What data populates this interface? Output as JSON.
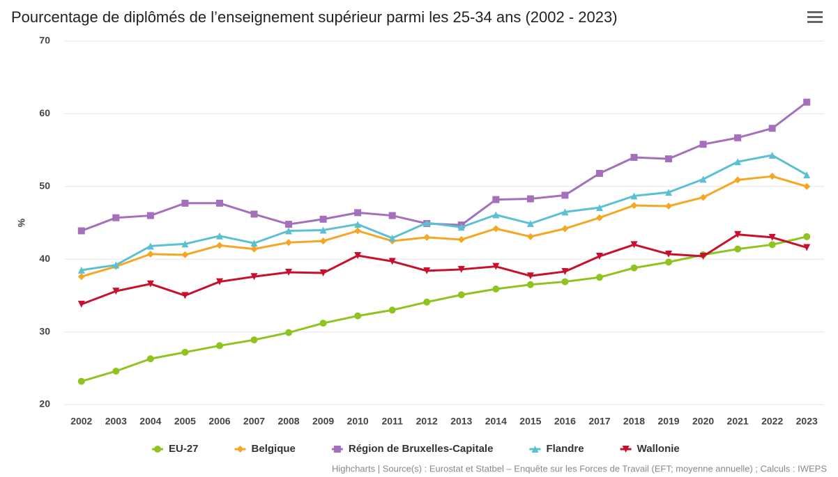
{
  "chart_data": {
    "type": "line",
    "title": "Pourcentage de diplômés de l’enseignement supérieur parmi les 25-34 ans (2002 - 2023)",
    "y_label": "%",
    "credits": "Highcharts | Source(s) : Eurostat et Statbel – Enquête sur les Forces de Travail (EFT; moyenne annuelle) ; Calculs : IWEPS",
    "categories": [
      "2002",
      "2003",
      "2004",
      "2005",
      "2006",
      "2007",
      "2008",
      "2009",
      "2010",
      "2011",
      "2012",
      "2013",
      "2014",
      "2015",
      "2016",
      "2017",
      "2018",
      "2019",
      "2020",
      "2021",
      "2022",
      "2023"
    ],
    "ylim": [
      20,
      70
    ],
    "yticks": [
      20,
      30,
      40,
      50,
      60,
      70
    ],
    "grid": true,
    "legend": "bottom",
    "series": [
      {
        "name": "EU-27",
        "color": "#8fc31f",
        "marker": "circle",
        "values": [
          23.2,
          24.6,
          26.3,
          27.2,
          28.1,
          28.9,
          29.9,
          31.2,
          32.2,
          33.0,
          34.1,
          35.1,
          35.9,
          36.5,
          36.9,
          37.5,
          38.8,
          39.6,
          40.6,
          41.4,
          42.0,
          43.1
        ]
      },
      {
        "name": "Belgique",
        "color": "#f5a623",
        "marker": "diamond",
        "values": [
          37.6,
          39.0,
          40.7,
          40.6,
          41.9,
          41.4,
          42.3,
          42.5,
          43.9,
          42.5,
          43.0,
          42.7,
          44.2,
          43.1,
          44.2,
          45.7,
          47.4,
          47.3,
          48.5,
          50.9,
          51.4,
          50.0
        ]
      },
      {
        "name": "Région de Bruxelles-Capitale",
        "color": "#a470bc",
        "marker": "square",
        "values": [
          43.9,
          45.7,
          46.0,
          47.7,
          47.7,
          46.2,
          44.8,
          45.5,
          46.4,
          46.0,
          44.9,
          44.7,
          48.2,
          48.3,
          48.8,
          51.8,
          54.0,
          53.8,
          55.8,
          56.7,
          58.0,
          61.6
        ]
      },
      {
        "name": "Flandre",
        "color": "#5bc0d3",
        "marker": "triangle",
        "values": [
          38.5,
          39.2,
          41.8,
          42.1,
          43.2,
          42.2,
          43.9,
          44.0,
          44.8,
          42.9,
          45.0,
          44.4,
          46.1,
          44.9,
          46.5,
          47.1,
          48.7,
          49.2,
          51.0,
          53.4,
          54.3,
          51.6
        ]
      },
      {
        "name": "Wallonie",
        "color": "#c8102e",
        "marker": "triangle-down",
        "values": [
          33.8,
          35.6,
          36.6,
          35.0,
          36.9,
          37.6,
          38.2,
          38.1,
          40.5,
          39.7,
          38.4,
          38.6,
          39.0,
          37.7,
          38.3,
          40.4,
          42.0,
          40.7,
          40.4,
          43.4,
          43.0,
          41.6
        ]
      }
    ]
  }
}
